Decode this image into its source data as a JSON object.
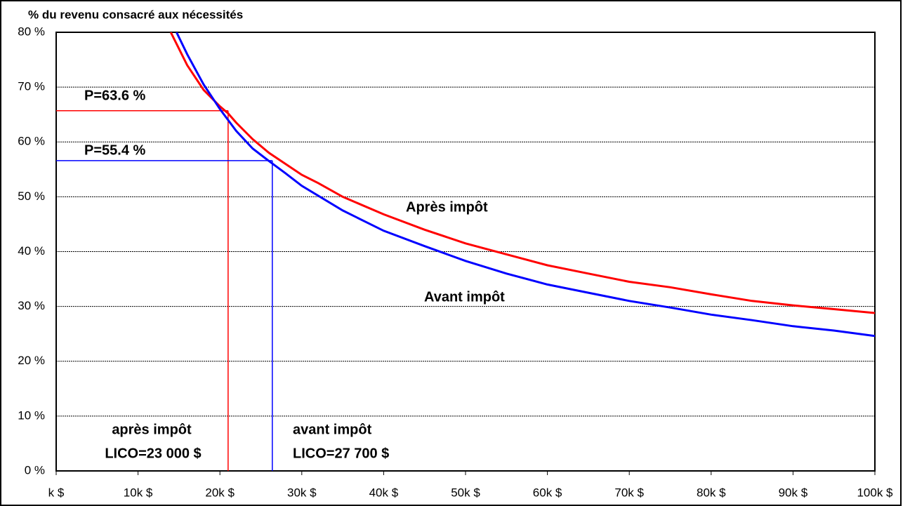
{
  "chart_data": {
    "type": "line",
    "title": "% du revenu consacré aux nécessités",
    "xlim": [
      0,
      100
    ],
    "xticks": [
      {
        "value": 0,
        "label": "k $"
      },
      {
        "value": 10,
        "label": "10k $"
      },
      {
        "value": 20,
        "label": "20k $"
      },
      {
        "value": 30,
        "label": "30k $"
      },
      {
        "value": 40,
        "label": "40k $"
      },
      {
        "value": 50,
        "label": "50k $"
      },
      {
        "value": 60,
        "label": "60k $"
      },
      {
        "value": 70,
        "label": "70k $"
      },
      {
        "value": 80,
        "label": "80k $"
      },
      {
        "value": 90,
        "label": "90k $"
      },
      {
        "value": 100,
        "label": "100k $"
      }
    ],
    "ylim": [
      0,
      80
    ],
    "yticks": [
      {
        "value": 0,
        "label": "0 %"
      },
      {
        "value": 10,
        "label": "10 %"
      },
      {
        "value": 20,
        "label": "20 %"
      },
      {
        "value": 30,
        "label": "30 %"
      },
      {
        "value": 40,
        "label": "40 %"
      },
      {
        "value": 50,
        "label": "50 %"
      },
      {
        "value": 60,
        "label": "60 %"
      },
      {
        "value": 70,
        "label": "70 %"
      },
      {
        "value": 80,
        "label": "80 %"
      }
    ],
    "grid": true,
    "series": [
      {
        "name": "Après impôt",
        "color": "#ff0000",
        "x": [
          14,
          16,
          18,
          20,
          21,
          22,
          24,
          26,
          28,
          30,
          32,
          35,
          40,
          45,
          50,
          55,
          60,
          65,
          70,
          75,
          80,
          85,
          90,
          95,
          100
        ],
        "values": [
          80,
          74,
          69.5,
          66.5,
          65.2,
          63.5,
          60.5,
          58,
          56,
          54,
          52.5,
          50,
          46.8,
          44,
          41.5,
          39.5,
          37.5,
          36,
          34.5,
          33.5,
          32.2,
          31,
          30.2,
          29.5,
          28.8
        ]
      },
      {
        "name": "Avant impôt",
        "color": "#0000ff",
        "x": [
          14.7,
          16,
          18,
          20,
          22,
          24,
          26,
          28,
          30,
          35,
          40,
          45,
          50,
          55,
          60,
          65,
          70,
          75,
          80,
          85,
          90,
          95,
          100
        ],
        "values": [
          80,
          76,
          70.5,
          66,
          62,
          58.8,
          56.5,
          54.3,
          52,
          47.5,
          43.8,
          41,
          38.3,
          36,
          34,
          32.5,
          31,
          29.8,
          28.5,
          27.5,
          26.4,
          25.6,
          24.6
        ]
      }
    ],
    "reference_lines": [
      {
        "x": 21,
        "y": 65.7,
        "color": "#ff0000"
      },
      {
        "x": 26.4,
        "y": 56.6,
        "color": "#0000ff"
      }
    ],
    "annotations": [
      {
        "text": "P=63.6 %",
        "color": "#ff0000"
      },
      {
        "text": "P=55.4 %",
        "color": "#0000ff"
      },
      {
        "text": "après impôt",
        "color": "#ff0000"
      },
      {
        "text": "LICO=23 000 $",
        "color": "#ff0000"
      },
      {
        "text": "avant impôt",
        "color": "#0000ff"
      },
      {
        "text": "LICO=27 700 $",
        "color": "#0000ff"
      }
    ]
  }
}
